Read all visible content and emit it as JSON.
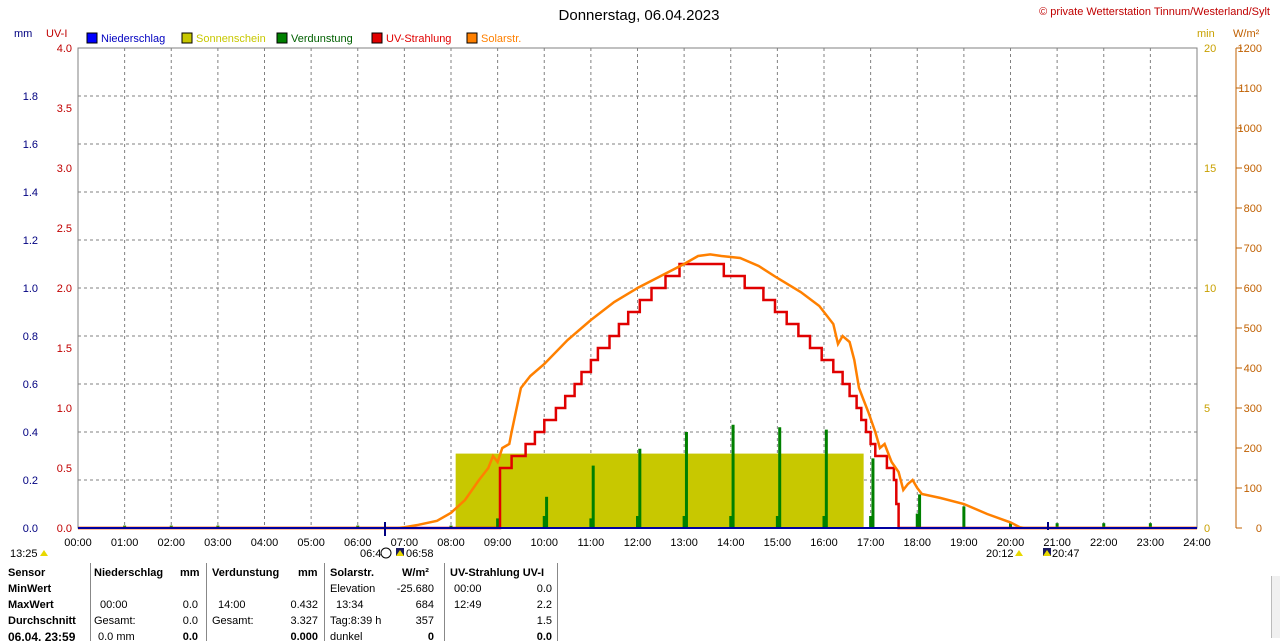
{
  "title": "Donnerstag, 06.04.2023",
  "copyright": "© private Wetterstation Tinnum/Westerland/Sylt",
  "axes": {
    "left1_unit": "mm",
    "left2_unit": "UV-I",
    "right1_unit": "min",
    "right2_unit": "W/m²",
    "mm_ticks": [
      "0.0",
      "0.2",
      "0.4",
      "0.6",
      "0.8",
      "1.0",
      "1.2",
      "1.4",
      "1.6",
      "1.8"
    ],
    "uv_ticks": [
      "0.0",
      "0.5",
      "1.0",
      "1.5",
      "2.0",
      "2.5",
      "3.0",
      "3.5",
      "4.0"
    ],
    "min_ticks": [
      "0",
      "5",
      "10",
      "15",
      "20"
    ],
    "wm2_ticks": [
      "0",
      "100",
      "200",
      "300",
      "400",
      "500",
      "600",
      "700",
      "800",
      "900",
      "1000",
      "1100",
      "1200"
    ],
    "x_ticks": [
      "00:00",
      "01:00",
      "02:00",
      "03:00",
      "04:00",
      "05:00",
      "06:00",
      "07:00",
      "08:00",
      "09:00",
      "10:00",
      "11:00",
      "12:00",
      "13:00",
      "14:00",
      "15:00",
      "16:00",
      "17:00",
      "18:00",
      "19:00",
      "20:00",
      "21:00",
      "22:00",
      "23:00",
      "24:00"
    ]
  },
  "colors": {
    "niederschlag": "#0000ff",
    "sonnenschein": "#c8c800",
    "verdunstung": "#008000",
    "uv": "#e00000",
    "solar": "#ff8000",
    "grid": "#808080"
  },
  "legend": [
    "Niederschlag",
    "Sonnenschein",
    "Verdunstung",
    "UV-Strahlung",
    "Solarstr."
  ],
  "sun_markers": {
    "now_time": "13:25",
    "dawn": "06:4",
    "sunrise": "06:58",
    "sunset": "20:12",
    "dusk": "20:47"
  },
  "chart_data": {
    "type": "line",
    "title": "Donnerstag, 06.04.2023",
    "xlim": [
      0,
      24
    ],
    "ylim_uv": [
      0,
      4
    ],
    "ylim_mm": [
      0,
      2
    ],
    "ylim_min": [
      0,
      20
    ],
    "ylim_wm2": [
      0,
      1200
    ],
    "uv_series": {
      "name": "UV-Strahlung",
      "points": [
        [
          0,
          0
        ],
        [
          9.05,
          0
        ],
        [
          9.05,
          0.5
        ],
        [
          9.3,
          0.5
        ],
        [
          9.3,
          0.6
        ],
        [
          9.6,
          0.6
        ],
        [
          9.6,
          0.7
        ],
        [
          9.8,
          0.7
        ],
        [
          9.8,
          0.8
        ],
        [
          10.0,
          0.8
        ],
        [
          10.0,
          0.9
        ],
        [
          10.25,
          0.9
        ],
        [
          10.25,
          1.0
        ],
        [
          10.45,
          1.0
        ],
        [
          10.45,
          1.1
        ],
        [
          10.65,
          1.1
        ],
        [
          10.65,
          1.2
        ],
        [
          10.8,
          1.2
        ],
        [
          10.8,
          1.3
        ],
        [
          11.0,
          1.3
        ],
        [
          11.0,
          1.4
        ],
        [
          11.15,
          1.4
        ],
        [
          11.15,
          1.5
        ],
        [
          11.4,
          1.5
        ],
        [
          11.4,
          1.6
        ],
        [
          11.6,
          1.6
        ],
        [
          11.6,
          1.7
        ],
        [
          11.8,
          1.7
        ],
        [
          11.8,
          1.8
        ],
        [
          12.05,
          1.8
        ],
        [
          12.05,
          1.9
        ],
        [
          12.3,
          1.9
        ],
        [
          12.3,
          2.0
        ],
        [
          12.6,
          2.0
        ],
        [
          12.6,
          2.1
        ],
        [
          12.9,
          2.1
        ],
        [
          12.9,
          2.2
        ],
        [
          13.85,
          2.2
        ],
        [
          13.85,
          2.1
        ],
        [
          14.3,
          2.1
        ],
        [
          14.3,
          2.0
        ],
        [
          14.7,
          2.0
        ],
        [
          14.7,
          1.9
        ],
        [
          14.95,
          1.9
        ],
        [
          14.95,
          1.8
        ],
        [
          15.2,
          1.8
        ],
        [
          15.2,
          1.7
        ],
        [
          15.45,
          1.7
        ],
        [
          15.45,
          1.6
        ],
        [
          15.7,
          1.6
        ],
        [
          15.7,
          1.5
        ],
        [
          15.95,
          1.5
        ],
        [
          15.95,
          1.4
        ],
        [
          16.2,
          1.4
        ],
        [
          16.2,
          1.3
        ],
        [
          16.4,
          1.3
        ],
        [
          16.4,
          1.2
        ],
        [
          16.55,
          1.2
        ],
        [
          16.55,
          1.1
        ],
        [
          16.7,
          1.1
        ],
        [
          16.7,
          1.0
        ],
        [
          16.8,
          1.0
        ],
        [
          16.8,
          0.9
        ],
        [
          16.9,
          0.9
        ],
        [
          16.9,
          0.8
        ],
        [
          17.0,
          0.8
        ],
        [
          17.0,
          0.7
        ],
        [
          17.1,
          0.7
        ],
        [
          17.1,
          0.6
        ],
        [
          17.35,
          0.6
        ],
        [
          17.35,
          0.5
        ],
        [
          17.5,
          0.5
        ],
        [
          17.5,
          0.4
        ],
        [
          17.55,
          0.4
        ],
        [
          17.55,
          0.2
        ],
        [
          17.6,
          0.2
        ],
        [
          17.6,
          0
        ],
        [
          24,
          0
        ]
      ]
    },
    "solar_series": {
      "name": "Solarstr.",
      "points": [
        [
          0,
          0
        ],
        [
          6.85,
          0
        ],
        [
          7.0,
          2
        ],
        [
          7.3,
          8
        ],
        [
          7.7,
          18
        ],
        [
          8.0,
          38
        ],
        [
          8.3,
          70
        ],
        [
          8.6,
          120
        ],
        [
          8.8,
          150
        ],
        [
          8.9,
          180
        ],
        [
          9.0,
          165
        ],
        [
          9.1,
          200
        ],
        [
          9.25,
          210
        ],
        [
          9.3,
          240
        ],
        [
          9.5,
          350
        ],
        [
          9.7,
          380
        ],
        [
          10.0,
          410
        ],
        [
          10.5,
          470
        ],
        [
          11.0,
          520
        ],
        [
          11.5,
          565
        ],
        [
          12.0,
          600
        ],
        [
          12.5,
          630
        ],
        [
          13.0,
          660
        ],
        [
          13.3,
          680
        ],
        [
          13.56,
          684
        ],
        [
          13.8,
          680
        ],
        [
          14.2,
          675
        ],
        [
          14.6,
          655
        ],
        [
          15.0,
          625
        ],
        [
          15.5,
          590
        ],
        [
          15.9,
          555
        ],
        [
          16.2,
          510
        ],
        [
          16.3,
          460
        ],
        [
          16.4,
          480
        ],
        [
          16.55,
          465
        ],
        [
          16.65,
          420
        ],
        [
          16.75,
          350
        ],
        [
          16.85,
          320
        ],
        [
          16.95,
          290
        ],
        [
          17.1,
          240
        ],
        [
          17.2,
          200
        ],
        [
          17.3,
          210
        ],
        [
          17.45,
          165
        ],
        [
          17.6,
          140
        ],
        [
          17.7,
          95
        ],
        [
          17.8,
          110
        ],
        [
          17.9,
          120
        ],
        [
          18.0,
          100
        ],
        [
          18.1,
          85
        ],
        [
          18.5,
          75
        ],
        [
          19.0,
          60
        ],
        [
          19.5,
          35
        ],
        [
          20.0,
          14
        ],
        [
          20.2,
          2
        ],
        [
          20.3,
          0
        ],
        [
          24,
          0
        ]
      ]
    },
    "sunshine_bar": {
      "name": "Sonnenschein",
      "start": 8.1,
      "end": 16.85,
      "value_min": 3.1
    },
    "evaporation_spikes": {
      "name": "Verdunstung",
      "values_mm": [
        [
          1,
          0.01
        ],
        [
          2,
          0.01
        ],
        [
          3,
          0.01
        ],
        [
          6,
          0.01
        ],
        [
          8,
          0.01
        ],
        [
          9,
          0.04
        ],
        [
          10,
          0.05
        ],
        [
          10.05,
          0.13
        ],
        [
          11,
          0.04
        ],
        [
          11.05,
          0.26
        ],
        [
          12,
          0.05
        ],
        [
          12.05,
          0.33
        ],
        [
          13,
          0.05
        ],
        [
          13.05,
          0.4
        ],
        [
          14,
          0.05
        ],
        [
          14.05,
          0.43
        ],
        [
          15,
          0.05
        ],
        [
          15.05,
          0.42
        ],
        [
          16,
          0.05
        ],
        [
          16.05,
          0.41
        ],
        [
          17,
          0.05
        ],
        [
          17.05,
          0.29
        ],
        [
          18,
          0.06
        ],
        [
          18.05,
          0.14
        ],
        [
          19,
          0.09
        ],
        [
          20,
          0.02
        ],
        [
          21,
          0.02
        ],
        [
          22,
          0.02
        ],
        [
          23,
          0.02
        ]
      ]
    },
    "precipitation_mm": 0.0
  },
  "stats": {
    "header": {
      "sensor": "Sensor",
      "niederschlag": "Niederschlag",
      "mm1": "mm",
      "verdunstung": "Verdunstung",
      "mm2": "mm",
      "solar": "Solarstr.",
      "wm2": "W/m²",
      "uv": "UV-Strahlung UV-I"
    },
    "rows": {
      "minwert": "MinWert",
      "maxwert": "MaxWert",
      "durchschnitt": "Durchschnitt",
      "footer_date": "06.04. 23:59"
    },
    "niederschlag": {
      "max_time": "00:00",
      "max_val": "0.0",
      "gesamt_label": "Gesamt:",
      "gesamt": "0.0",
      "foot_a": "0.0 mm",
      "foot_b": "0.0"
    },
    "verdunstung": {
      "max_time": "14:00",
      "max_val": "0.432",
      "gesamt_label": "Gesamt:",
      "gesamt": "3.327",
      "foot": "0.000"
    },
    "solar": {
      "elev_label": "Elevation",
      "elev": "-25.680",
      "max_time": "13:34",
      "max_val": "684",
      "tag_label": "Tag:8:39 h",
      "tag_val": "357",
      "dunkel_label": "dunkel",
      "dunkel_val": "0"
    },
    "uv": {
      "min_time": "00:00",
      "min_val": "0.0",
      "max_time": "12:49",
      "max_val": "2.2",
      "avg": "1.5",
      "foot": "0.0"
    }
  }
}
